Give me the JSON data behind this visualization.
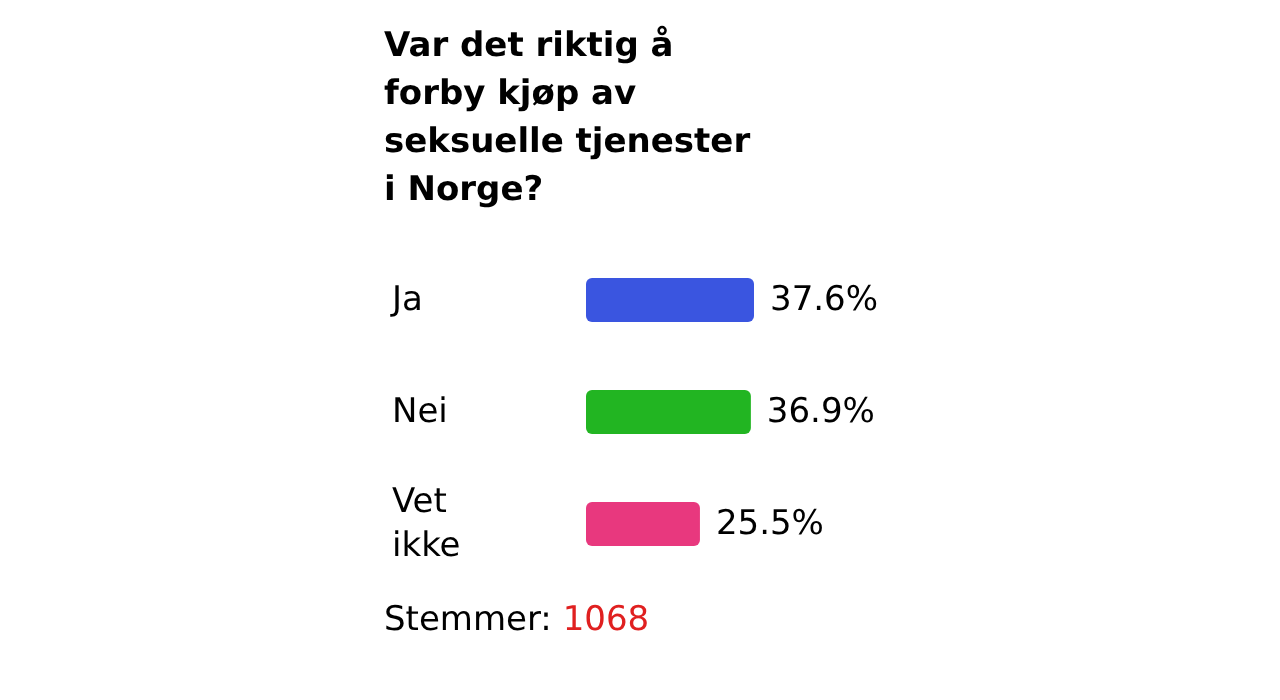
{
  "chart_data": {
    "type": "bar",
    "orientation": "horizontal",
    "title": "Var det riktig å forby kjøp av seksuelle tjenester i Norge?",
    "categories": [
      "Ja",
      "Nei",
      "Vet ikke"
    ],
    "values": [
      37.6,
      36.9,
      25.5
    ],
    "colors": [
      "#3a55e0",
      "#22b522",
      "#e8387e"
    ],
    "data_labels": true,
    "value_labels": [
      "37.6%",
      "36.9%",
      "25.5%"
    ],
    "annotations": [
      "Stemmer: 1068"
    ]
  }
}
